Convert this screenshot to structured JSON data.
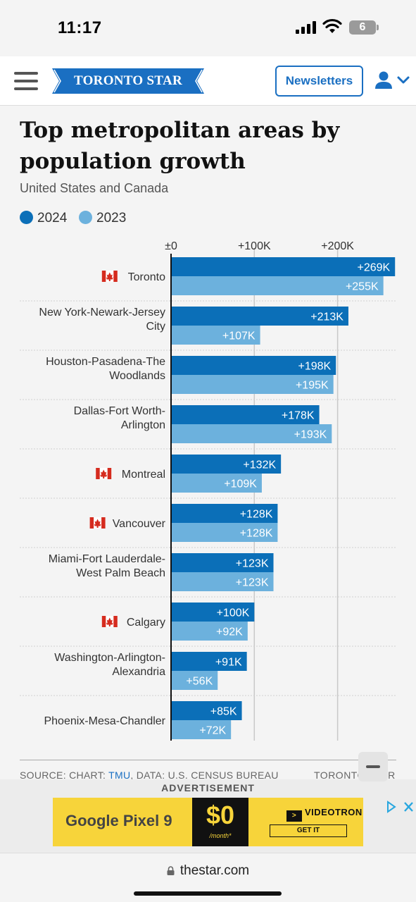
{
  "status_bar": {
    "time": "11:17",
    "battery": "6"
  },
  "header": {
    "logo_text": "TORONTO STAR",
    "newsletters_label": "Newsletters",
    "brand_color": "#1a6fc2"
  },
  "chart_data": {
    "type": "bar",
    "title": "Top metropolitan areas by population growth",
    "subtitle": "United States and Canada",
    "orientation": "horizontal",
    "categories": [
      "Toronto",
      "New York-Newark-Jersey City",
      "Houston-Pasadena-The Woodlands",
      "Dallas-Fort Worth-Arlington",
      "Montreal",
      "Vancouver",
      "Miami-Fort Lauderdale-West Palm Beach",
      "Calgary",
      "Washington-Arlington-Alexandria",
      "Phoenix-Mesa-Chandler"
    ],
    "category_lines": [
      [
        "Toronto"
      ],
      [
        "New York-Newark-Jersey",
        "City"
      ],
      [
        "Houston-Pasadena-The",
        "Woodlands"
      ],
      [
        "Dallas-Fort Worth-",
        "Arlington"
      ],
      [
        "Montreal"
      ],
      [
        "Vancouver"
      ],
      [
        "Miami-Fort Lauderdale-",
        "West Palm Beach"
      ],
      [
        "Calgary"
      ],
      [
        "Washington-Arlington-",
        "Alexandria"
      ],
      [
        "Phoenix-Mesa-Chandler"
      ]
    ],
    "canadian": [
      true,
      false,
      false,
      false,
      true,
      true,
      false,
      true,
      false,
      false
    ],
    "series": [
      {
        "name": "2024",
        "color": "#0b6fb8",
        "values": [
          269,
          213,
          198,
          178,
          132,
          128,
          123,
          100,
          91,
          85
        ],
        "labels": [
          "+269K",
          "+213K",
          "+198K",
          "+178K",
          "+132K",
          "+128K",
          "+123K",
          "+100K",
          "+91K",
          "+85K"
        ]
      },
      {
        "name": "2023",
        "color": "#6cb1dd",
        "values": [
          255,
          107,
          195,
          193,
          109,
          128,
          123,
          92,
          56,
          72
        ],
        "labels": [
          "+255K",
          "+107K",
          "+195K",
          "+193K",
          "+109K",
          "+128K",
          "+123K",
          "+92K",
          "+56K",
          "+72K"
        ]
      }
    ],
    "xticks": [
      {
        "value": 0,
        "label": "±0"
      },
      {
        "value": 100,
        "label": "+100K"
      },
      {
        "value": 200,
        "label": "+200K"
      }
    ],
    "xlim": [
      0,
      269
    ],
    "unit": "thousands",
    "grid": true,
    "legend_position": "top-left"
  },
  "source": {
    "prefix": "SOURCE: CHART:",
    "link": "TMU",
    "suffix": ", DATA: U.S. CENSUS BUREAU",
    "brand": "TORONTO STAR"
  },
  "ad": {
    "label": "ADVERTISEMENT",
    "brand": "Google Pixel 9",
    "price": "$0",
    "per": "/month*",
    "advertiser": "VIDEOTRON",
    "cta": "GET IT"
  },
  "browser": {
    "url": "thestar.com"
  }
}
